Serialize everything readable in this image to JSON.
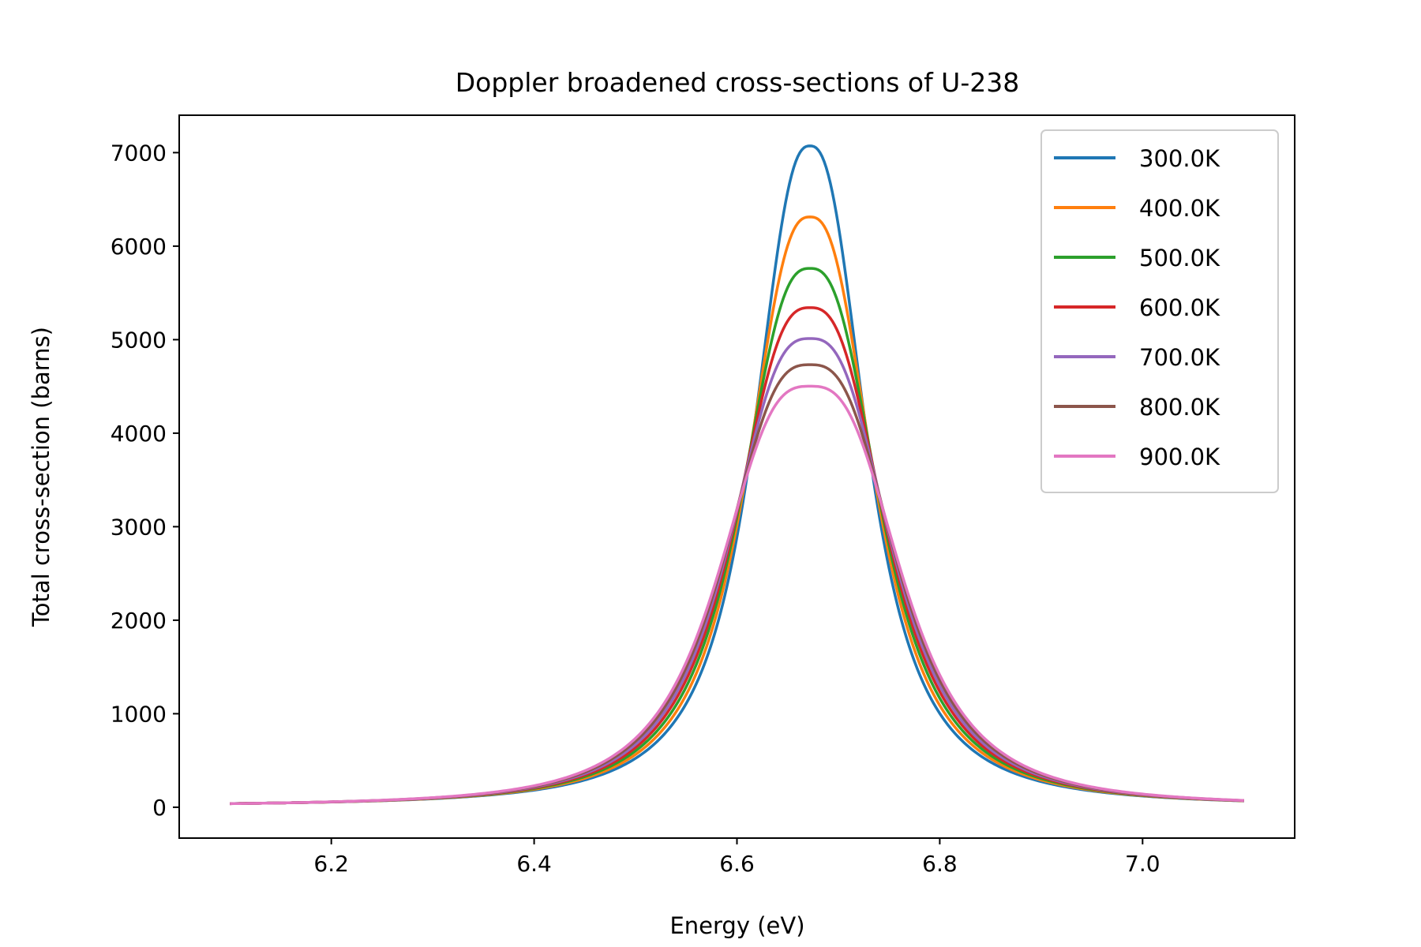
{
  "chart_data": {
    "type": "line",
    "title": "Doppler broadened cross-sections of U-238",
    "xlabel": "Energy (eV)",
    "ylabel": "Total cross-section (barns)",
    "xlim": [
      6.05,
      7.15
    ],
    "ylim": [
      -330,
      7400
    ],
    "xticks": [
      6.2,
      6.4,
      6.6,
      6.8,
      7.0
    ],
    "xtick_labels": [
      "6.2",
      "6.4",
      "6.6",
      "6.8",
      "7.0"
    ],
    "yticks": [
      0,
      1000,
      2000,
      3000,
      4000,
      5000,
      6000,
      7000
    ],
    "ytick_labels": [
      "0",
      "1000",
      "2000",
      "3000",
      "4000",
      "5000",
      "6000",
      "7000"
    ],
    "grid": false,
    "legend_position": "top-right",
    "x_range": [
      6.1,
      7.1
    ],
    "resonance_energy": 6.672,
    "series": [
      {
        "name": "300.0K",
        "color": "#1f77b4",
        "peak": 7060
      },
      {
        "name": "400.0K",
        "color": "#ff7f0e",
        "peak": 6300
      },
      {
        "name": "500.0K",
        "color": "#2ca02c",
        "peak": 5750
      },
      {
        "name": "600.0K",
        "color": "#d62728",
        "peak": 5330
      },
      {
        "name": "700.0K",
        "color": "#9467bd",
        "peak": 5000
      },
      {
        "name": "800.0K",
        "color": "#8c564b",
        "peak": 4720
      },
      {
        "name": "900.0K",
        "color": "#e377c2",
        "peak": 4490
      }
    ]
  }
}
